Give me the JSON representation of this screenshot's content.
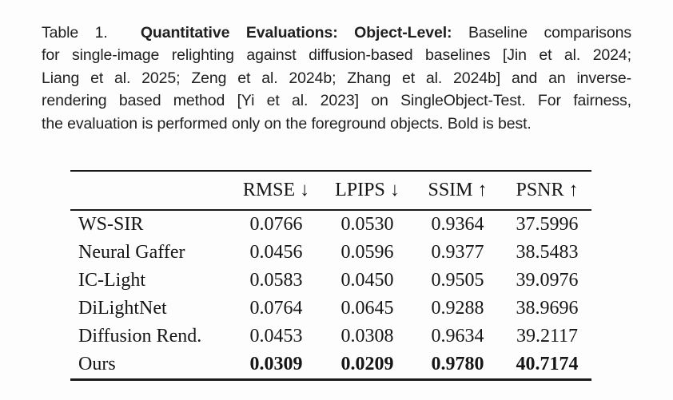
{
  "caption": {
    "lines": [
      [
        {
          "text": "Table 1.  ",
          "bold": false
        },
        {
          "text": "Quantitative Evaluations: Object-Level:",
          "bold": true
        },
        {
          "text": " Baseline comparisons",
          "bold": false
        }
      ],
      [
        {
          "text": "for single-image relighting against diffusion-based baselines [Jin et al. 2024;",
          "bold": false
        }
      ],
      [
        {
          "text": "Liang et al. 2025; Zeng et al. 2024b; Zhang et al. 2024b] and an inverse-",
          "bold": false
        }
      ],
      [
        {
          "text": "rendering based method [Yi et al. 2023] on SingleObject-Test. For fairness,",
          "bold": false
        }
      ],
      [
        {
          "text": "the evaluation is performed only on the foreground objects. Bold is best.",
          "bold": false
        }
      ]
    ]
  },
  "table": {
    "columns": [
      "RMSE ↓",
      "LPIPS ↓",
      "SSIM ↑",
      "PSNR ↑"
    ],
    "rows": [
      {
        "method": "WS-SIR",
        "values": [
          "0.0766",
          "0.0530",
          "0.9364",
          "37.5996"
        ],
        "bold": false
      },
      {
        "method": "Neural Gaffer",
        "values": [
          "0.0456",
          "0.0596",
          "0.9377",
          "38.5483"
        ],
        "bold": false
      },
      {
        "method": "IC-Light",
        "values": [
          "0.0583",
          "0.0450",
          "0.9505",
          "39.0976"
        ],
        "bold": false
      },
      {
        "method": "DiLightNet",
        "values": [
          "0.0764",
          "0.0645",
          "0.9288",
          "38.9696"
        ],
        "bold": false
      },
      {
        "method": "Diffusion Rend.",
        "values": [
          "0.0453",
          "0.0308",
          "0.9634",
          "39.2117"
        ],
        "bold": false
      },
      {
        "method": "Ours",
        "values": [
          "0.0309",
          "0.0209",
          "0.9780",
          "40.7174"
        ],
        "bold": true
      }
    ]
  },
  "colors": {
    "background": "#fdfdfd",
    "text": "#1b1b1b",
    "rule": "#1a1a1a"
  }
}
